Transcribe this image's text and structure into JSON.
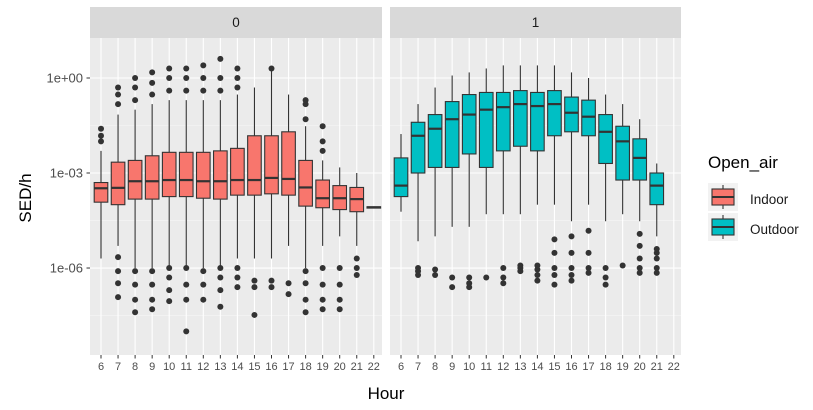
{
  "chart_data": {
    "type": "boxplot",
    "facet_variable": "Open_air",
    "facets": [
      "0",
      "1"
    ],
    "xlabel": "Hour",
    "ylabel": "SED/h",
    "y_scale": "log10",
    "y_ticks": [
      {
        "value": 1e-06,
        "label": "1e-06"
      },
      {
        "value": 0.001,
        "label": "1e-03"
      },
      {
        "value": 1,
        "label": "1e+00"
      }
    ],
    "x_categories": [
      "6",
      "7",
      "8",
      "9",
      "10",
      "11",
      "12",
      "13",
      "14",
      "15",
      "16",
      "17",
      "18",
      "19",
      "20",
      "21",
      "22"
    ],
    "legend": {
      "title": "Open_air",
      "position": "right",
      "entries": [
        {
          "label": "Indoor",
          "color": "#F8766D"
        },
        {
          "label": "Outdoor",
          "color": "#00BFC4"
        }
      ]
    },
    "grid": true,
    "panel_background": "#EBEBEB",
    "strip_background": "#D9D9D9",
    "series": [
      {
        "name": "Indoor",
        "facet": "0",
        "color": "#F8766D",
        "boxes": [
          {
            "hour": "6",
            "q1": 0.00012,
            "median": 0.00033,
            "q3": 0.0005,
            "lower_whisker": 2e-06,
            "upper_whisker": 0.005,
            "outliers": [
              0.015,
              0.025,
              0.01
            ]
          },
          {
            "hour": "7",
            "q1": 0.0001,
            "median": 0.00034,
            "q3": 0.0022,
            "lower_whisker": 5e-06,
            "upper_whisker": 0.07,
            "outliers": [
              1.2e-07,
              3.3e-07,
              8e-07,
              2.2e-06,
              0.15,
              0.3,
              0.5
            ]
          },
          {
            "hour": "8",
            "q1": 0.00015,
            "median": 0.00055,
            "q3": 0.0025,
            "lower_whisker": 1e-06,
            "upper_whisker": 0.1,
            "outliers": [
              4e-08,
              1e-07,
              3e-07,
              8e-07,
              0.2,
              0.5,
              1.0
            ]
          },
          {
            "hour": "9",
            "q1": 0.00015,
            "median": 0.00055,
            "q3": 0.0035,
            "lower_whisker": 1e-06,
            "upper_whisker": 0.15,
            "outliers": [
              5e-08,
              1e-07,
              3e-07,
              8e-07,
              0.3,
              0.7,
              1.5
            ]
          },
          {
            "hour": "10",
            "q1": 0.00018,
            "median": 0.0006,
            "q3": 0.0045,
            "lower_whisker": 1e-06,
            "upper_whisker": 0.2,
            "outliers": [
              9e-08,
              2e-07,
              5e-07,
              1e-06,
              0.4,
              1.0,
              2.0
            ]
          },
          {
            "hour": "11",
            "q1": 0.00018,
            "median": 0.0006,
            "q3": 0.0045,
            "lower_whisker": 1e-06,
            "upper_whisker": 0.2,
            "outliers": [
              1e-08,
              1e-07,
              3e-07,
              1e-06,
              0.4,
              1.0,
              2.0
            ]
          },
          {
            "hour": "12",
            "q1": 0.00016,
            "median": 0.00055,
            "q3": 0.0045,
            "lower_whisker": 1e-06,
            "upper_whisker": 0.2,
            "outliers": [
              1e-07,
              3e-07,
              8e-07,
              0.4,
              1.0,
              2.5
            ]
          },
          {
            "hour": "13",
            "q1": 0.00015,
            "median": 0.00055,
            "q3": 0.005,
            "lower_whisker": 1e-06,
            "upper_whisker": 0.2,
            "outliers": [
              6e-08,
              2e-07,
              5e-07,
              1e-06,
              0.4,
              1.0,
              4.0
            ]
          },
          {
            "hour": "14",
            "q1": 0.0002,
            "median": 0.0006,
            "q3": 0.006,
            "lower_whisker": 2e-06,
            "upper_whisker": 0.3,
            "outliers": [
              2.5e-07,
              5e-07,
              1e-06,
              0.5,
              1.0,
              2.0
            ]
          },
          {
            "hour": "15",
            "q1": 0.0002,
            "median": 0.0006,
            "q3": 0.015,
            "lower_whisker": 2e-06,
            "upper_whisker": 0.5,
            "outliers": [
              3.3e-08,
              2.5e-07,
              4e-07
            ]
          },
          {
            "hour": "16",
            "q1": 0.00022,
            "median": 0.0007,
            "q3": 0.015,
            "lower_whisker": 2e-06,
            "upper_whisker": 2.0,
            "outliers": [
              2.5e-07,
              4e-07,
              2.0
            ]
          },
          {
            "hour": "17",
            "q1": 0.0002,
            "median": 0.00065,
            "q3": 0.02,
            "lower_whisker": 5e-06,
            "upper_whisker": 0.3,
            "outliers": [
              1.5e-07,
              3.3e-07
            ]
          },
          {
            "hour": "18",
            "q1": 9e-05,
            "median": 0.00035,
            "q3": 0.0025,
            "lower_whisker": 1e-06,
            "upper_whisker": 0.03,
            "outliers": [
              4e-08,
              1e-07,
              3.3e-07,
              8e-07,
              0.05,
              0.15,
              0.2
            ]
          },
          {
            "hour": "19",
            "q1": 8e-05,
            "median": 0.00016,
            "q3": 0.0006,
            "lower_whisker": 5e-06,
            "upper_whisker": 0.0025,
            "outliers": [
              5e-08,
              1e-07,
              3e-07,
              1e-06,
              0.005,
              0.01,
              0.03
            ]
          },
          {
            "hour": "20",
            "q1": 7e-05,
            "median": 0.00016,
            "q3": 0.0004,
            "lower_whisker": 1e-05,
            "upper_whisker": 0.0015,
            "outliers": [
              5e-08,
              1e-07,
              3e-07,
              1e-06
            ]
          },
          {
            "hour": "21",
            "q1": 6e-05,
            "median": 0.00015,
            "q3": 0.00035,
            "lower_whisker": 5e-06,
            "upper_whisker": 0.001,
            "outliers": [
              6e-07,
              1e-06,
              2e-06
            ]
          },
          {
            "hour": "22",
            "q1": 7.8e-05,
            "median": 8.2e-05,
            "q3": 8.6e-05,
            "lower_whisker": 7.8e-05,
            "upper_whisker": 8.6e-05,
            "outliers": []
          }
        ]
      },
      {
        "name": "Outdoor",
        "facet": "1",
        "color": "#00BFC4",
        "boxes": [
          {
            "hour": "6",
            "q1": 0.00018,
            "median": 0.0004,
            "q3": 0.003,
            "lower_whisker": 6e-05,
            "upper_whisker": 0.017,
            "outliers": []
          },
          {
            "hour": "7",
            "q1": 0.001,
            "median": 0.015,
            "q3": 0.04,
            "lower_whisker": 7e-06,
            "upper_whisker": 0.15,
            "outliers": [
              6e-07,
              8e-07,
              1e-06
            ]
          },
          {
            "hour": "8",
            "q1": 0.0015,
            "median": 0.025,
            "q3": 0.07,
            "lower_whisker": 1e-05,
            "upper_whisker": 0.5,
            "outliers": [
              6e-07,
              9e-07
            ]
          },
          {
            "hour": "9",
            "q1": 0.0015,
            "median": 0.05,
            "q3": 0.18,
            "lower_whisker": 2e-05,
            "upper_whisker": 1.2,
            "outliers": [
              2.5e-07,
              5e-07
            ]
          },
          {
            "hour": "10",
            "q1": 0.004,
            "median": 0.07,
            "q3": 0.3,
            "lower_whisker": 2e-05,
            "upper_whisker": 1.5,
            "outliers": [
              2.5e-07,
              3.3e-07,
              5e-07
            ]
          },
          {
            "hour": "11",
            "q1": 0.0015,
            "median": 0.1,
            "q3": 0.35,
            "lower_whisker": 5e-05,
            "upper_whisker": 2.0,
            "outliers": [
              5e-07
            ]
          },
          {
            "hour": "12",
            "q1": 0.005,
            "median": 0.12,
            "q3": 0.35,
            "lower_whisker": 5e-05,
            "upper_whisker": 2.5,
            "outliers": [
              3.3e-07,
              5e-07,
              1e-06
            ]
          },
          {
            "hour": "13",
            "q1": 0.007,
            "median": 0.15,
            "q3": 0.4,
            "lower_whisker": 5e-05,
            "upper_whisker": 2.5,
            "outliers": [
              8e-07,
              1e-06,
              1.2e-06
            ]
          },
          {
            "hour": "14",
            "q1": 0.005,
            "median": 0.13,
            "q3": 0.35,
            "lower_whisker": 0.0001,
            "upper_whisker": 2.5,
            "outliers": [
              4e-07,
              6e-07,
              9e-07,
              1.2e-06
            ]
          },
          {
            "hour": "15",
            "q1": 0.015,
            "median": 0.15,
            "q3": 0.4,
            "lower_whisker": 0.0001,
            "upper_whisker": 2.5,
            "outliers": [
              3e-07,
              6e-07,
              1e-06,
              3e-06,
              8e-06
            ]
          },
          {
            "hour": "16",
            "q1": 0.02,
            "median": 0.08,
            "q3": 0.25,
            "lower_whisker": 3e-05,
            "upper_whisker": 1.5,
            "outliers": [
              4e-07,
              6e-07,
              1e-06,
              3e-06,
              1e-05
            ]
          },
          {
            "hour": "17",
            "q1": 0.015,
            "median": 0.06,
            "q3": 0.2,
            "lower_whisker": 0.0001,
            "upper_whisker": 1.0,
            "outliers": [
              7e-07,
              1e-06,
              3e-06,
              1.5e-05
            ]
          },
          {
            "hour": "18",
            "q1": 0.002,
            "median": 0.02,
            "q3": 0.07,
            "lower_whisker": 3e-05,
            "upper_whisker": 0.3,
            "outliers": [
              3e-07,
              5e-07,
              1e-06
            ]
          },
          {
            "hour": "19",
            "q1": 0.0006,
            "median": 0.01,
            "q3": 0.03,
            "lower_whisker": 5e-05,
            "upper_whisker": 0.15,
            "outliers": [
              1.2e-06
            ]
          },
          {
            "hour": "20",
            "q1": 0.0006,
            "median": 0.003,
            "q3": 0.012,
            "lower_whisker": 3e-05,
            "upper_whisker": 0.05,
            "outliers": [
              7e-07,
              1e-06,
              2e-06,
              5e-06,
              1.2e-05
            ]
          },
          {
            "hour": "21",
            "q1": 0.0001,
            "median": 0.0004,
            "q3": 0.001,
            "lower_whisker": 1e-05,
            "upper_whisker": 0.002,
            "outliers": [
              7e-07,
              1e-06,
              2e-06,
              3e-06,
              4e-06
            ]
          }
        ]
      }
    ]
  }
}
